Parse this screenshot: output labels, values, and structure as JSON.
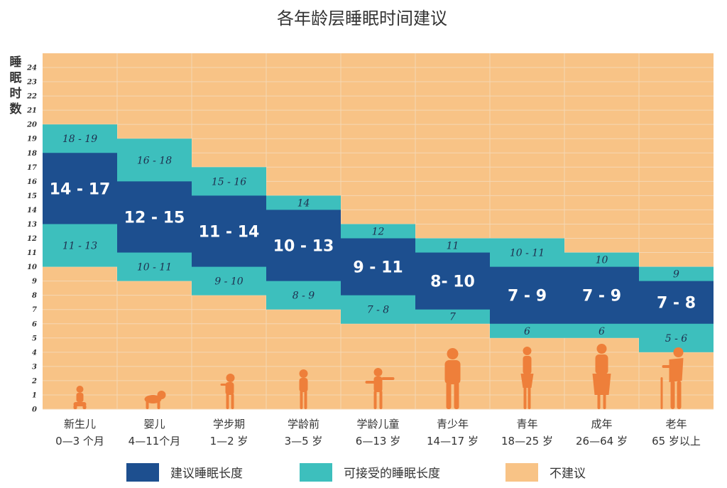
{
  "chart_data": {
    "type": "bar",
    "title": "各年龄层睡眠时间建议",
    "ylabel": "睡眠时数",
    "ylim": [
      0,
      24
    ],
    "yticks": [
      "0",
      "1",
      "2",
      "3",
      "4",
      "5",
      "6",
      "7",
      "8",
      "9",
      "10",
      "11",
      "12",
      "13",
      "14",
      "15",
      "16",
      "17",
      "18",
      "19",
      "20",
      "21",
      "22",
      "23",
      "24"
    ],
    "grid": true,
    "categories": [
      {
        "line1": "新生儿",
        "line2": "0—3 个月"
      },
      {
        "line1": "婴儿",
        "line2": "4—11个月"
      },
      {
        "line1": "学步期",
        "line2": "1—2 岁"
      },
      {
        "line1": "学龄前",
        "line2": "3—5 岁"
      },
      {
        "line1": "学龄儿童",
        "line2": "6—13 岁"
      },
      {
        "line1": "青少年",
        "line2": "14—17 岁"
      },
      {
        "line1": "青年",
        "line2": "18—25 岁"
      },
      {
        "line1": "成年",
        "line2": "26—64 岁"
      },
      {
        "line1": "老年",
        "line2": "65 岁以上"
      }
    ],
    "recommended": [
      {
        "low": 14,
        "high": 17,
        "label": "14 - 17"
      },
      {
        "low": 12,
        "high": 15,
        "label": "12 - 15"
      },
      {
        "low": 11,
        "high": 14,
        "label": "11 - 14"
      },
      {
        "low": 10,
        "high": 13,
        "label": "10 - 13"
      },
      {
        "low": 9,
        "high": 11,
        "label": "9 - 11"
      },
      {
        "low": 8,
        "high": 10,
        "label": "8- 10"
      },
      {
        "low": 7,
        "high": 9,
        "label": "7 - 9"
      },
      {
        "low": 7,
        "high": 9,
        "label": "7 - 9"
      },
      {
        "low": 7,
        "high": 8,
        "label": "7 - 8"
      }
    ],
    "acceptable_upper": [
      {
        "low": 18,
        "high": 19,
        "label": "18 - 19"
      },
      {
        "low": 16,
        "high": 18,
        "label": "16 - 18"
      },
      {
        "low": 15,
        "high": 16,
        "label": "15 - 16"
      },
      {
        "low": 14,
        "high": 14,
        "label": "14"
      },
      {
        "low": 12,
        "high": 12,
        "label": "12"
      },
      {
        "low": 11,
        "high": 11,
        "label": "11"
      },
      {
        "low": 10,
        "high": 11,
        "label": "10 - 11"
      },
      {
        "low": 10,
        "high": 10,
        "label": "10"
      },
      {
        "low": 9,
        "high": 9,
        "label": "9"
      }
    ],
    "acceptable_lower": [
      {
        "low": 11,
        "high": 13,
        "label": "11 - 13"
      },
      {
        "low": 10,
        "high": 11,
        "label": "10 - 11"
      },
      {
        "low": 9,
        "high": 10,
        "label": "9 - 10"
      },
      {
        "low": 8,
        "high": 9,
        "label": "8 - 9"
      },
      {
        "low": 7,
        "high": 8,
        "label": "7 - 8"
      },
      {
        "low": 7,
        "high": 7,
        "label": "7"
      },
      {
        "low": 6,
        "high": 6,
        "label": "6"
      },
      {
        "low": 6,
        "high": 6,
        "label": "6"
      },
      {
        "low": 5,
        "high": 6,
        "label": "5 - 6"
      }
    ],
    "legend": [
      {
        "key": "recommended",
        "label": "建议睡眠长度",
        "color": "#1d4f8f"
      },
      {
        "key": "acceptable",
        "label": "可接受的睡眠长度",
        "color": "#3dbfbd"
      },
      {
        "key": "not_recommended",
        "label": "不建议",
        "color": "#f8c386"
      }
    ],
    "legend_position": "bottom",
    "colors": {
      "background": "#f8c386",
      "grid": "#f5d7b3",
      "recommended": "#1d4f8f",
      "acceptable": "#3dbfbd",
      "figure": "#ee7f3a"
    },
    "figures": [
      "baby-figure",
      "crawling-baby-figure",
      "toddler-figure",
      "preschooler-figure",
      "child-figure",
      "teen-figure",
      "young-adult-figure",
      "adult-figure",
      "elderly-figure"
    ]
  }
}
